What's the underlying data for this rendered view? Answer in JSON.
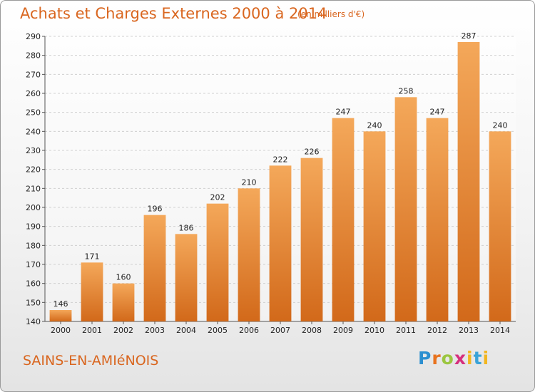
{
  "title": "Achats et Charges Externes 2000 à 2014",
  "unit_note": "(en milliers d'€)",
  "commune": "SAINS-EN-AMIéNOIS",
  "logo": {
    "p": "P",
    "r": "r",
    "o": "o",
    "x": "x",
    "i": "i",
    "t": "t",
    "i2": "i"
  },
  "colors": {
    "bar_top": "#f4a85a",
    "bar_bottom": "#d2691a",
    "title": "#d9661f",
    "grid": "#d0d0d0"
  },
  "chart_data": {
    "type": "bar",
    "categories": [
      "2000",
      "2001",
      "2002",
      "2003",
      "2004",
      "2005",
      "2006",
      "2007",
      "2008",
      "2009",
      "2010",
      "2011",
      "2012",
      "2013",
      "2014"
    ],
    "values": [
      146,
      171,
      160,
      196,
      186,
      202,
      210,
      222,
      226,
      247,
      240,
      258,
      247,
      287,
      240
    ],
    "ylim": [
      140,
      290
    ],
    "yticks": [
      140,
      150,
      160,
      170,
      180,
      190,
      200,
      210,
      220,
      230,
      240,
      250,
      260,
      270,
      280,
      290
    ],
    "grid": true,
    "data_labels": true
  }
}
